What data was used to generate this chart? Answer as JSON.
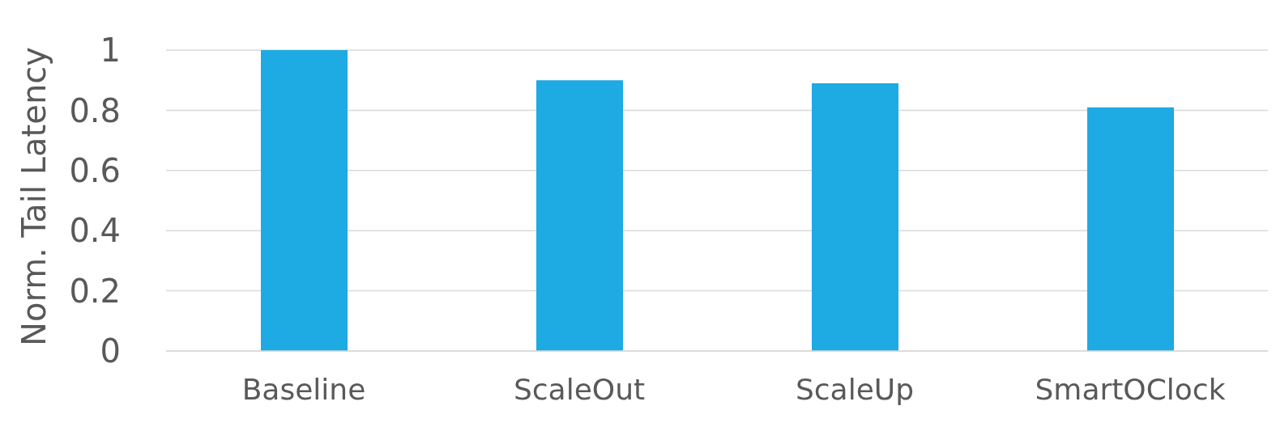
{
  "chart_data": {
    "type": "bar",
    "ylabel": "Norm. Tail Latency",
    "categories": [
      "Baseline",
      "ScaleOut",
      "ScaleUp",
      "SmartOClock"
    ],
    "values": [
      1.0,
      0.9,
      0.89,
      0.81
    ],
    "color": "#1eaae2",
    "ylim": [
      0,
      1
    ],
    "yticks": [
      0,
      0.2,
      0.4,
      0.6,
      0.8,
      1
    ],
    "grid": "y"
  }
}
